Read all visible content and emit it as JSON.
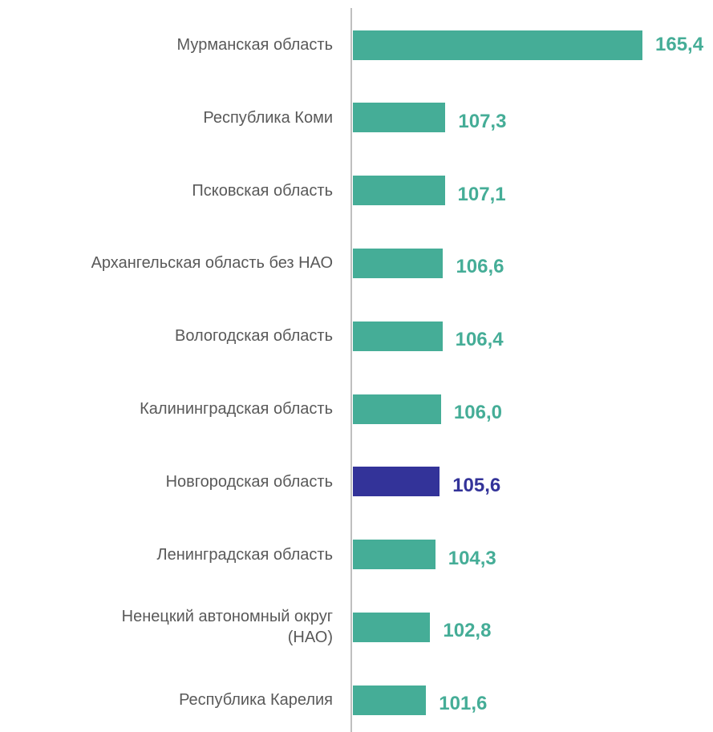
{
  "chart_data": {
    "type": "bar",
    "orientation": "horizontal",
    "categories": [
      "Мурманская область",
      "Республика Коми",
      "Псковская область",
      "Архангельская область без НАО",
      "Вологодская область",
      "Калининградская область",
      "Новгородская область",
      "Ленинградская область",
      "Ненецкий автономный округ\n(НАО)",
      "Республика Карелия"
    ],
    "values": [
      165.4,
      107.3,
      107.1,
      106.6,
      106.4,
      106.0,
      105.6,
      104.3,
      102.8,
      101.6
    ],
    "value_labels": [
      "165,4",
      "107,3",
      "107,1",
      "106,6",
      "106,4",
      "106,0",
      "105,6",
      "104,3",
      "102,8",
      "101,6"
    ],
    "colors": [
      "#45ad97",
      "#45ad97",
      "#45ad97",
      "#45ad97",
      "#45ad97",
      "#45ad97",
      "#333399",
      "#45ad97",
      "#45ad97",
      "#45ad97"
    ],
    "xlim": [
      80,
      170
    ]
  }
}
